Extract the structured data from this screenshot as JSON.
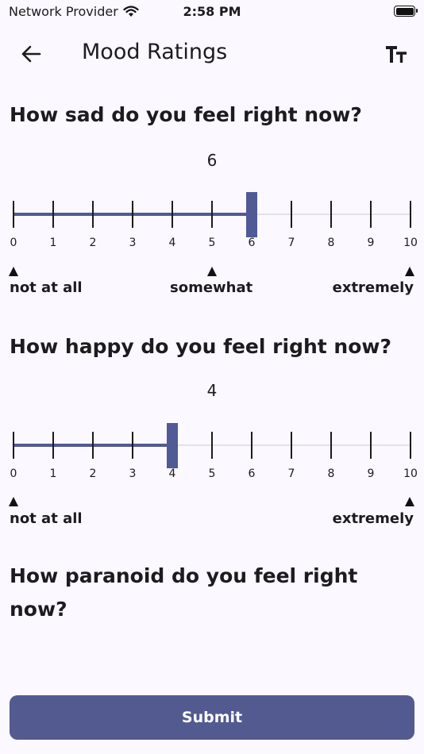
{
  "status_bar": {
    "carrier": "Network Provider",
    "time": "2:58 PM"
  },
  "header": {
    "title": "Mood Ratings"
  },
  "questions": [
    {
      "text": "How sad do you feel right now?",
      "value": 6,
      "min": 0,
      "max": 10,
      "ticks": [
        "0",
        "1",
        "2",
        "3",
        "4",
        "5",
        "6",
        "7",
        "8",
        "9",
        "10"
      ],
      "anchors": {
        "low": "not at all",
        "mid": "somewhat",
        "high": "extremely"
      }
    },
    {
      "text": "How happy do you feel right now?",
      "value": 4,
      "min": 0,
      "max": 10,
      "ticks": [
        "0",
        "1",
        "2",
        "3",
        "4",
        "5",
        "6",
        "7",
        "8",
        "9",
        "10"
      ],
      "anchors": {
        "low": "not at all",
        "high": "extremely"
      }
    },
    {
      "text": "How paranoid do you feel right now?"
    }
  ],
  "submit_label": "Submit",
  "colors": {
    "accent": "#505a94",
    "background": "#fbf8ff",
    "button": "#535a90"
  },
  "icons": {
    "back": "arrow-left-icon",
    "text_size": "text-size-icon",
    "wifi": "wifi-icon",
    "battery": "battery-icon"
  }
}
